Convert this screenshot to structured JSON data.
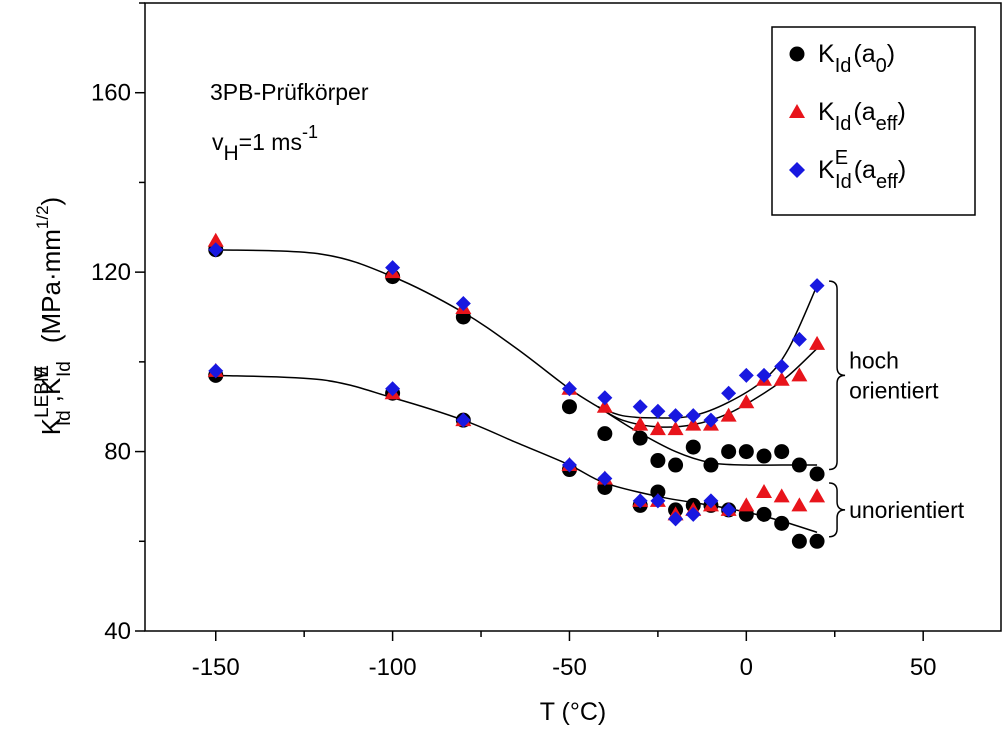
{
  "chart_data": {
    "type": "scatter",
    "annotation_title": "3PB-Prüfkörper",
    "annotation_speed": {
      "base": "v",
      "sub": "H",
      "text": "=1 ms",
      "sup": "-1"
    },
    "xlabel": "T (°C)",
    "ylabel": {
      "k1": "K",
      "k1_sup": "LEBM",
      "k1_sub": "Id",
      "sep": ",",
      "k2": "K",
      "k2_sup": "E",
      "k2_sub": "Id",
      "units": "(MPa·mm",
      "units_sup": "1/2",
      "units_close": ")"
    },
    "xlim": [
      -170,
      72
    ],
    "ylim": [
      40,
      180
    ],
    "x_ticks": [
      -150,
      -100,
      -50,
      0,
      50
    ],
    "y_ticks": [
      40,
      80,
      120,
      160
    ],
    "grid": false,
    "legend_position": "top-right",
    "series": [
      {
        "name": "K_Id(a_0)",
        "legend": {
          "k": "K",
          "sub": "Id",
          "open": "(a",
          "arg": "0",
          "sup": "",
          "close": ")"
        },
        "marker": "circle",
        "color": "#000000",
        "points": [
          [
            -150,
            125
          ],
          [
            -100,
            119
          ],
          [
            -80,
            110
          ],
          [
            -50,
            90
          ],
          [
            -40,
            84
          ],
          [
            -30,
            83
          ],
          [
            -25,
            78
          ],
          [
            -20,
            77
          ],
          [
            -15,
            81
          ],
          [
            -10,
            77
          ],
          [
            -5,
            80
          ],
          [
            0,
            80
          ],
          [
            5,
            79
          ],
          [
            10,
            80
          ],
          [
            15,
            77
          ],
          [
            20,
            75
          ],
          [
            -150,
            97
          ],
          [
            -100,
            93
          ],
          [
            -80,
            87
          ],
          [
            -50,
            76
          ],
          [
            -40,
            72
          ],
          [
            -30,
            68
          ],
          [
            -25,
            71
          ],
          [
            -20,
            67
          ],
          [
            -15,
            68
          ],
          [
            -10,
            68
          ],
          [
            -5,
            67
          ],
          [
            0,
            66
          ],
          [
            5,
            66
          ],
          [
            10,
            64
          ],
          [
            15,
            60
          ],
          [
            20,
            60
          ]
        ]
      },
      {
        "name": "K_Id(a_eff)",
        "legend": {
          "k": "K",
          "sub": "Id",
          "open": "(a",
          "arg": "eff",
          "sup": "",
          "close": ")"
        },
        "marker": "triangle",
        "color": "#e8141b",
        "points": [
          [
            -150,
            127
          ],
          [
            -100,
            120
          ],
          [
            -80,
            112
          ],
          [
            -50,
            94
          ],
          [
            -40,
            90
          ],
          [
            -30,
            86
          ],
          [
            -25,
            85
          ],
          [
            -20,
            85
          ],
          [
            -15,
            86
          ],
          [
            -10,
            86
          ],
          [
            -5,
            88
          ],
          [
            0,
            91
          ],
          [
            5,
            96
          ],
          [
            10,
            96
          ],
          [
            15,
            97
          ],
          [
            20,
            104
          ],
          [
            -150,
            98
          ],
          [
            -100,
            93
          ],
          [
            -80,
            87
          ],
          [
            -50,
            77
          ],
          [
            -40,
            74
          ],
          [
            -30,
            69
          ],
          [
            -25,
            69
          ],
          [
            -20,
            66
          ],
          [
            -15,
            67
          ],
          [
            -10,
            68
          ],
          [
            -5,
            67
          ],
          [
            0,
            68
          ],
          [
            5,
            71
          ],
          [
            10,
            70
          ],
          [
            15,
            68
          ],
          [
            20,
            70
          ]
        ]
      },
      {
        "name": "K_Id^E(a_eff)",
        "legend": {
          "k": "K",
          "sub": "Id",
          "open": "(a",
          "arg": "eff",
          "sup": "E",
          "close": ")"
        },
        "marker": "diamond",
        "color": "#1818e0",
        "points": [
          [
            -150,
            125
          ],
          [
            -100,
            121
          ],
          [
            -80,
            113
          ],
          [
            -50,
            94
          ],
          [
            -40,
            92
          ],
          [
            -30,
            90
          ],
          [
            -25,
            89
          ],
          [
            -20,
            88
          ],
          [
            -15,
            88
          ],
          [
            -10,
            87
          ],
          [
            -5,
            93
          ],
          [
            0,
            97
          ],
          [
            5,
            97
          ],
          [
            10,
            99
          ],
          [
            15,
            105
          ],
          [
            20,
            117
          ],
          [
            -150,
            98
          ],
          [
            -100,
            94
          ],
          [
            -80,
            87
          ],
          [
            -50,
            77
          ],
          [
            -40,
            74
          ],
          [
            -30,
            69
          ],
          [
            -25,
            69
          ],
          [
            -20,
            65
          ],
          [
            -15,
            66
          ],
          [
            -10,
            69
          ],
          [
            -5,
            67
          ]
        ]
      }
    ],
    "fit_curves": [
      {
        "name": "upper-common",
        "points": [
          [
            -150,
            125
          ],
          [
            -120,
            124
          ],
          [
            -100,
            119
          ],
          [
            -80,
            111
          ],
          [
            -65,
            103
          ],
          [
            -50,
            94
          ],
          [
            -42,
            90
          ]
        ]
      },
      {
        "name": "upper-hoch-KE",
        "points": [
          [
            -42,
            90
          ],
          [
            -35,
            88
          ],
          [
            -25,
            87.5
          ],
          [
            -15,
            88
          ],
          [
            -5,
            91
          ],
          [
            5,
            96
          ],
          [
            12,
            103
          ],
          [
            20,
            117
          ]
        ]
      },
      {
        "name": "upper-hoch-Keff",
        "points": [
          [
            -42,
            90
          ],
          [
            -35,
            87
          ],
          [
            -25,
            85.5
          ],
          [
            -15,
            86
          ],
          [
            -5,
            88.5
          ],
          [
            5,
            93
          ],
          [
            12,
            97
          ],
          [
            20,
            103
          ]
        ]
      },
      {
        "name": "upper-hoch-K0",
        "points": [
          [
            -42,
            90
          ],
          [
            -32,
            85
          ],
          [
            -20,
            80
          ],
          [
            -10,
            77.5
          ],
          [
            0,
            77
          ],
          [
            10,
            77
          ],
          [
            20,
            77
          ]
        ]
      },
      {
        "name": "lower-unorientiert",
        "points": [
          [
            -150,
            97
          ],
          [
            -120,
            96
          ],
          [
            -100,
            92
          ],
          [
            -80,
            87
          ],
          [
            -65,
            82
          ],
          [
            -50,
            77
          ],
          [
            -40,
            73
          ],
          [
            -25,
            70
          ],
          [
            -10,
            68
          ],
          [
            0,
            66.5
          ],
          [
            10,
            64.5
          ],
          [
            20,
            62
          ]
        ]
      }
    ],
    "brackets": [
      {
        "label_lines": [
          "hoch",
          "orientiert"
        ],
        "range": [
          76,
          118
        ]
      },
      {
        "label_lines": [
          "unorientiert"
        ],
        "range": [
          61,
          73
        ]
      }
    ]
  }
}
